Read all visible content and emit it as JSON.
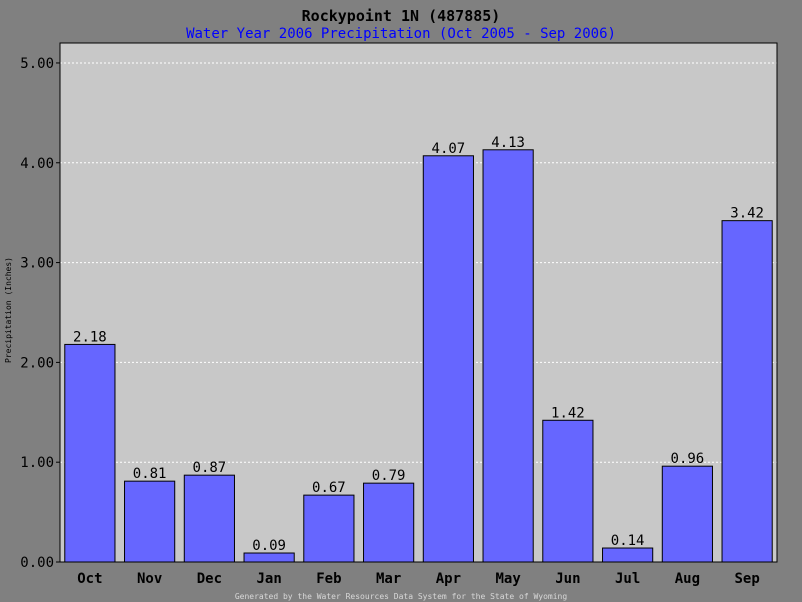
{
  "chart_data": {
    "type": "bar",
    "title": "Rockypoint 1N (487885)",
    "subtitle": "Water Year 2006 Precipitation (Oct 2005 - Sep 2006)",
    "ylabel": "Precipitation (Inches)",
    "xlabel": "",
    "categories": [
      "Oct",
      "Nov",
      "Dec",
      "Jan",
      "Feb",
      "Mar",
      "Apr",
      "May",
      "Jun",
      "Jul",
      "Aug",
      "Sep"
    ],
    "values": [
      2.18,
      0.81,
      0.87,
      0.09,
      0.67,
      0.79,
      4.07,
      4.13,
      1.42,
      0.14,
      0.96,
      3.42
    ],
    "data_labels": [
      "2.18",
      "0.81",
      "0.87",
      "0.09",
      "0.67",
      "0.79",
      "4.07",
      "4.13",
      "1.42",
      "0.14",
      "0.96",
      "3.42"
    ],
    "ylim": [
      0,
      5.2
    ],
    "yticks": [
      0,
      1,
      2,
      3,
      4,
      5
    ],
    "ytick_labels": [
      "0.00",
      "1.00",
      "2.00",
      "3.00",
      "4.00",
      "5.00"
    ],
    "grid": true,
    "legend": "none",
    "footer": "Generated by the Water Resources Data System for the State of Wyoming",
    "colors": {
      "background": "#808080",
      "plot_area": "#c8c8c8",
      "bar": "#6666ff",
      "bar_edge": "#000000",
      "grid": "#ffffff",
      "title": "#000000",
      "subtitle": "#0000ff"
    }
  }
}
